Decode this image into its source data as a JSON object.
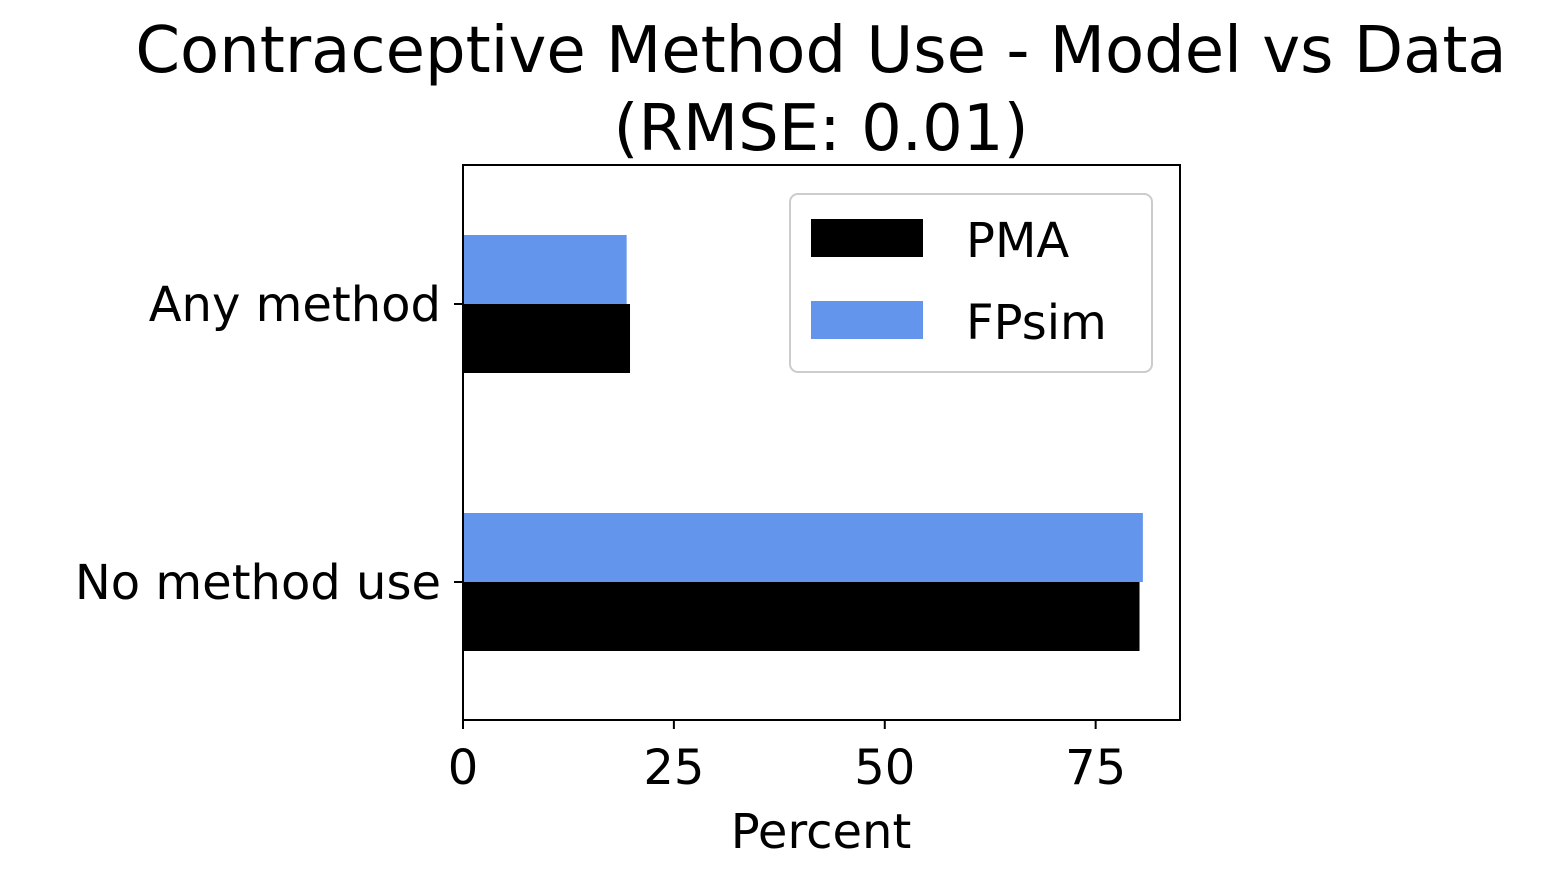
{
  "chart_data": {
    "type": "bar",
    "orientation": "horizontal",
    "title": "Contraceptive Method Use - Model vs Data",
    "subtitle": "(RMSE: 0.01)",
    "xlabel": "Percent",
    "ylabel": "",
    "categories": [
      "No method use",
      "Any method"
    ],
    "series": [
      {
        "name": "PMA",
        "values": [
          80.2,
          19.8
        ],
        "color": "#000000"
      },
      {
        "name": "FPsim",
        "values": [
          80.6,
          19.4
        ],
        "color": "#6495ED"
      }
    ],
    "xlim": [
      0,
      85
    ],
    "xticks": [
      0,
      25,
      50,
      75
    ],
    "xtick_labels": [
      "0",
      "25",
      "50",
      "75"
    ],
    "grid": false,
    "legend_position": "top-right"
  }
}
